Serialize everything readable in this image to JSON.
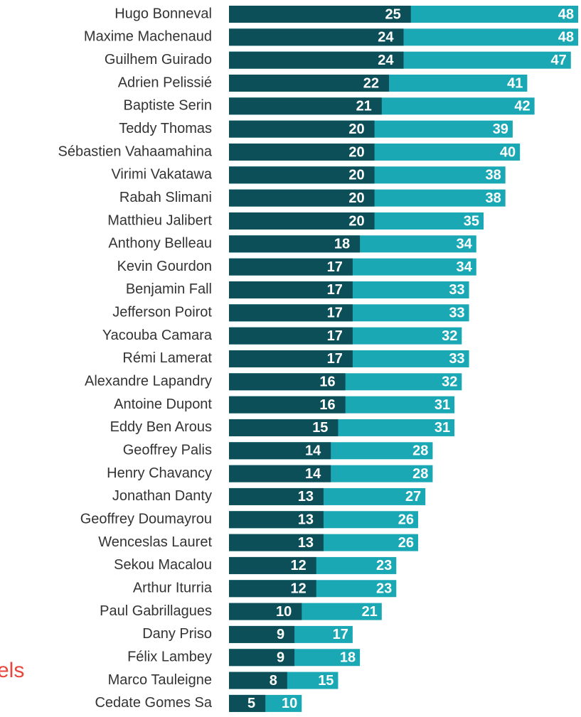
{
  "chart_data": {
    "type": "bar",
    "orientation": "horizontal",
    "annotation": "els",
    "categories": [
      "Hugo Bonneval",
      "Maxime Machenaud",
      "Guilhem Guirado",
      "Adrien Pelissié",
      "Baptiste Serin",
      "Teddy Thomas",
      "Sébastien Vahaamahina",
      "Virimi Vakatawa",
      "Rabah Slimani",
      "Matthieu Jalibert",
      "Anthony Belleau",
      "Kevin Gourdon",
      "Benjamin Fall",
      "Jefferson Poirot",
      "Yacouba Camara",
      "Rémi Lamerat",
      "Alexandre Lapandry",
      "Antoine Dupont",
      "Eddy Ben Arous",
      "Geoffrey Palis",
      "Henry Chavancy",
      "Jonathan Danty",
      "Geoffrey Doumayrou",
      "Wenceslas Lauret",
      "Sekou Macalou",
      "Arthur Iturria",
      "Paul Gabrillagues",
      "Dany Priso",
      "Félix Lambey",
      "Marco Tauleigne",
      "Cedate Gomes Sa"
    ],
    "series": [
      {
        "color": "#1ba8b5",
        "values": [
          48,
          48,
          47,
          41,
          42,
          39,
          40,
          38,
          38,
          35,
          34,
          34,
          33,
          33,
          32,
          33,
          32,
          31,
          31,
          28,
          28,
          27,
          26,
          26,
          23,
          23,
          21,
          17,
          18,
          15,
          10
        ]
      },
      {
        "color": "#0d4f58",
        "values": [
          25,
          24,
          24,
          22,
          21,
          20,
          20,
          20,
          20,
          20,
          18,
          17,
          17,
          17,
          17,
          17,
          16,
          16,
          15,
          14,
          14,
          13,
          13,
          13,
          12,
          12,
          10,
          9,
          9,
          8,
          5
        ]
      }
    ]
  }
}
